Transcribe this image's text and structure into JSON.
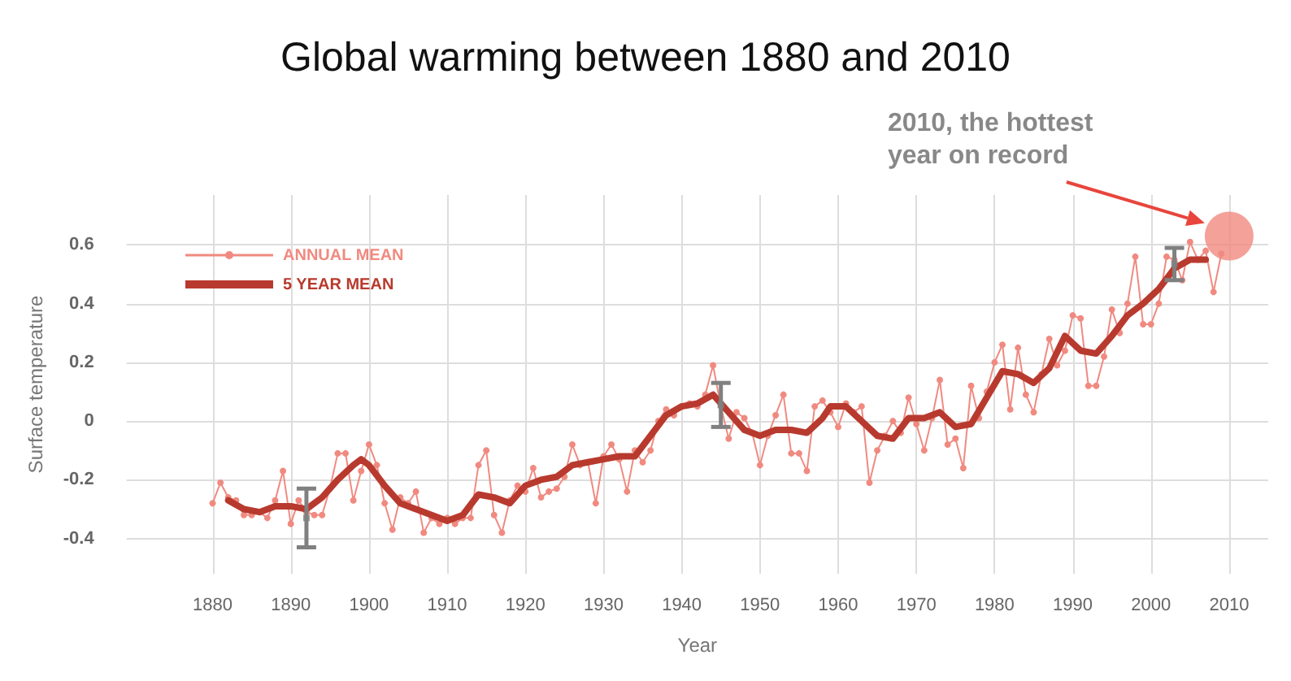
{
  "chart_data": {
    "type": "line",
    "title": "Global warming between 1880 and 2010",
    "xlabel": "Year",
    "ylabel": "Surface temperature",
    "xlim": [
      1869,
      2015
    ],
    "xticks": [
      1880,
      1890,
      1900,
      1910,
      1920,
      1930,
      1940,
      1950,
      1960,
      1970,
      1980,
      1990,
      2000,
      2010
    ],
    "ylim": [
      -0.52,
      0.77
    ],
    "yticks": [
      -0.4,
      -0.2,
      0,
      0.2,
      0.4,
      0.6
    ],
    "grid": true,
    "legend": "top left",
    "series": [
      {
        "name": "ANNUAL MEAN",
        "color": "#f08a80",
        "marker": "circle",
        "x": [
          1880,
          1881,
          1882,
          1883,
          1884,
          1885,
          1886,
          1887,
          1888,
          1889,
          1890,
          1891,
          1892,
          1893,
          1894,
          1895,
          1896,
          1897,
          1898,
          1899,
          1900,
          1901,
          1902,
          1903,
          1904,
          1905,
          1906,
          1907,
          1908,
          1909,
          1910,
          1911,
          1912,
          1913,
          1914,
          1915,
          1916,
          1917,
          1918,
          1919,
          1920,
          1921,
          1922,
          1923,
          1924,
          1925,
          1926,
          1927,
          1928,
          1929,
          1930,
          1931,
          1932,
          1933,
          1934,
          1935,
          1936,
          1937,
          1938,
          1939,
          1940,
          1941,
          1942,
          1943,
          1944,
          1945,
          1946,
          1947,
          1948,
          1949,
          1950,
          1951,
          1952,
          1953,
          1954,
          1955,
          1956,
          1957,
          1958,
          1959,
          1960,
          1961,
          1962,
          1963,
          1964,
          1965,
          1966,
          1967,
          1968,
          1969,
          1970,
          1971,
          1972,
          1973,
          1974,
          1975,
          1976,
          1977,
          1978,
          1979,
          1980,
          1981,
          1982,
          1983,
          1984,
          1985,
          1986,
          1987,
          1988,
          1989,
          1990,
          1991,
          1992,
          1993,
          1994,
          1995,
          1996,
          1997,
          1998,
          1999,
          2000,
          2001,
          2002,
          2003,
          2004,
          2005,
          2006,
          2007,
          2008,
          2009
        ],
        "values": [
          -0.28,
          -0.21,
          -0.26,
          -0.27,
          -0.32,
          -0.32,
          -0.31,
          -0.33,
          -0.27,
          -0.17,
          -0.35,
          -0.27,
          -0.31,
          -0.32,
          -0.32,
          -0.23,
          -0.11,
          -0.11,
          -0.27,
          -0.17,
          -0.08,
          -0.15,
          -0.28,
          -0.37,
          -0.26,
          -0.28,
          -0.24,
          -0.38,
          -0.33,
          -0.35,
          -0.33,
          -0.35,
          -0.33,
          -0.33,
          -0.15,
          -0.1,
          -0.32,
          -0.38,
          -0.27,
          -0.22,
          -0.24,
          -0.16,
          -0.26,
          -0.24,
          -0.23,
          -0.19,
          -0.08,
          -0.15,
          -0.14,
          -0.28,
          -0.12,
          -0.08,
          -0.13,
          -0.24,
          -0.1,
          -0.14,
          -0.1,
          0.0,
          0.04,
          0.02,
          0.05,
          0.06,
          0.05,
          0.09,
          0.19,
          0.05,
          -0.06,
          0.03,
          0.01,
          -0.04,
          -0.15,
          -0.05,
          0.02,
          0.09,
          -0.11,
          -0.11,
          -0.17,
          0.05,
          0.07,
          0.03,
          -0.02,
          0.06,
          0.03,
          0.05,
          -0.21,
          -0.1,
          -0.05,
          0.0,
          -0.04,
          0.08,
          -0.01,
          -0.1,
          0.01,
          0.14,
          -0.08,
          -0.06,
          -0.16,
          0.12,
          0.01,
          0.1,
          0.2,
          0.26,
          0.04,
          0.25,
          0.09,
          0.03,
          0.16,
          0.28,
          0.19,
          0.24,
          0.36,
          0.35,
          0.12,
          0.12,
          0.22,
          0.38,
          0.3,
          0.4,
          0.56,
          0.33,
          0.33,
          0.4,
          0.56,
          0.55,
          0.48,
          0.61,
          0.55,
          0.58,
          0.44,
          0.57
        ]
      },
      {
        "name": "5 YEAR MEAN",
        "color": "#b83a2e",
        "marker": "none",
        "x": [
          1882,
          1884,
          1886,
          1888,
          1890,
          1892,
          1894,
          1896,
          1898,
          1899,
          1900,
          1902,
          1904,
          1906,
          1908,
          1910,
          1912,
          1914,
          1916,
          1918,
          1920,
          1922,
          1924,
          1926,
          1928,
          1930,
          1932,
          1934,
          1936,
          1938,
          1940,
          1942,
          1944,
          1946,
          1948,
          1950,
          1952,
          1954,
          1956,
          1958,
          1959,
          1961,
          1963,
          1965,
          1967,
          1969,
          1971,
          1973,
          1975,
          1977,
          1979,
          1981,
          1983,
          1985,
          1987,
          1989,
          1991,
          1993,
          1995,
          1997,
          1999,
          2001,
          2003,
          2005,
          2007
        ],
        "values": [
          -0.27,
          -0.3,
          -0.31,
          -0.29,
          -0.29,
          -0.3,
          -0.26,
          -0.2,
          -0.15,
          -0.13,
          -0.15,
          -0.22,
          -0.28,
          -0.3,
          -0.32,
          -0.34,
          -0.32,
          -0.25,
          -0.26,
          -0.28,
          -0.22,
          -0.2,
          -0.19,
          -0.15,
          -0.14,
          -0.13,
          -0.12,
          -0.12,
          -0.05,
          0.02,
          0.05,
          0.06,
          0.09,
          0.03,
          -0.03,
          -0.05,
          -0.03,
          -0.03,
          -0.04,
          0.01,
          0.05,
          0.05,
          0.0,
          -0.05,
          -0.06,
          0.01,
          0.01,
          0.03,
          -0.02,
          -0.01,
          0.08,
          0.17,
          0.16,
          0.13,
          0.18,
          0.29,
          0.24,
          0.23,
          0.29,
          0.36,
          0.4,
          0.45,
          0.52,
          0.55,
          0.55
        ]
      },
      {
        "type": "scatter",
        "color": "#808080",
        "marker": "square",
        "x": [
          1892,
          1945,
          2003
        ],
        "values": [
          -0.33,
          0.055,
          0.535
        ],
        "errors": [
          0.1,
          0.075,
          0.055
        ]
      },
      {
        "type": "scatter",
        "color": "#f08a80",
        "marker": "circle",
        "x": [
          2010
        ],
        "values": [
          0.63
        ]
      }
    ],
    "annotations": [
      "2010, the hottest year on record"
    ]
  }
}
